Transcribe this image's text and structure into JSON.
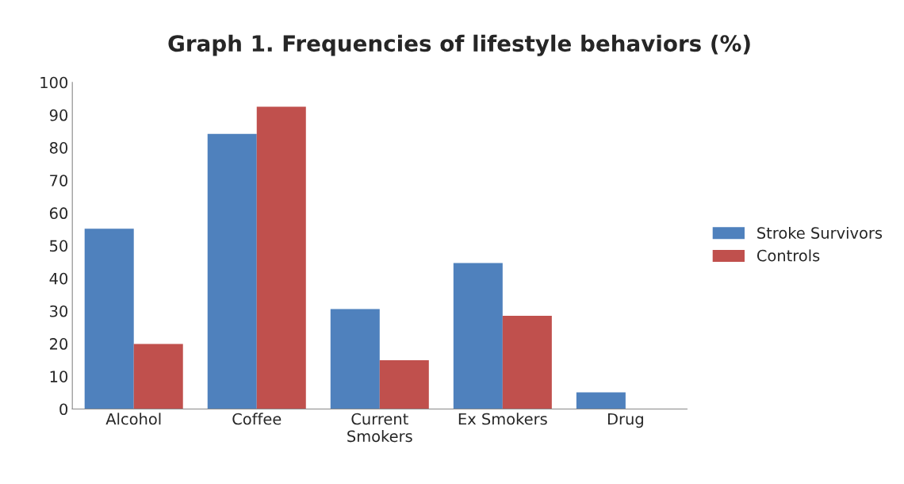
{
  "chart_data": {
    "type": "bar",
    "title": "Graph 1. Frequencies of lifestyle behaviors (%)",
    "categories": [
      "Alcohol",
      "Coffee",
      "Current\nSmokers",
      "Ex Smokers",
      "Drug"
    ],
    "series": [
      {
        "name": "Stroke Survivors",
        "color": "#4f81bd",
        "values": [
          55.2,
          84.2,
          30.6,
          44.7,
          5.1
        ]
      },
      {
        "name": "Controls",
        "color": "#c0504d",
        "values": [
          19.9,
          92.5,
          14.9,
          28.5,
          null
        ]
      }
    ],
    "ylim": [
      0,
      100
    ],
    "yticks": [
      0,
      10,
      20,
      30,
      40,
      50,
      60,
      70,
      80,
      90,
      100
    ],
    "grid": false,
    "legend": "right"
  }
}
